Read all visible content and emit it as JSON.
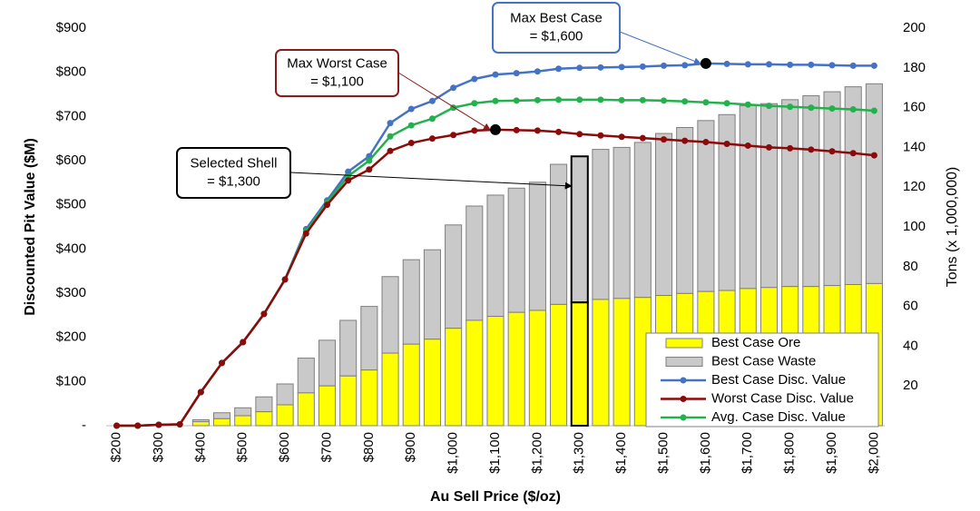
{
  "chart_data": {
    "type": "bar-line-combo",
    "x_label": "Au Sell Price ($/oz)",
    "y_label": "Discounted Pit Value ($M)",
    "y2_label": "Tons (x 1,000,000)",
    "categories": [
      "$200",
      null,
      "$300",
      null,
      "$400",
      null,
      "$500",
      null,
      "$600",
      null,
      "$700",
      null,
      "$800",
      null,
      "$900",
      null,
      "$1,000",
      null,
      "$1,100",
      null,
      "$1,200",
      null,
      "$1,300",
      null,
      "$1,400",
      null,
      "$1,500",
      null,
      "$1,600",
      null,
      "$1,700",
      null,
      "$1,800",
      null,
      "$1,900",
      null,
      "$2,000"
    ],
    "ylim": [
      0,
      900
    ],
    "yticks": [
      {
        "value": 0,
        "label": "-"
      },
      {
        "value": 100,
        "label": "$100"
      },
      {
        "value": 200,
        "label": "$200"
      },
      {
        "value": 300,
        "label": "$300"
      },
      {
        "value": 400,
        "label": "$400"
      },
      {
        "value": 500,
        "label": "$500"
      },
      {
        "value": 600,
        "label": "$600"
      },
      {
        "value": 700,
        "label": "$700"
      },
      {
        "value": 800,
        "label": "$800"
      },
      {
        "value": 900,
        "label": "$900"
      }
    ],
    "y2lim": [
      0,
      200
    ],
    "y2ticks": [
      20,
      40,
      60,
      80,
      100,
      120,
      140,
      160,
      180,
      200
    ],
    "series": [
      {
        "name": "Best Case Ore",
        "kind": "bar",
        "axis": "y2",
        "color": "#ffff00",
        "values": [
          null,
          null,
          null,
          null,
          2,
          3.5,
          5,
          7,
          10.5,
          16.5,
          20,
          25,
          28,
          36.5,
          41,
          43.5,
          49,
          53,
          55,
          57,
          58,
          61,
          62,
          63.5,
          64,
          64.5,
          65.5,
          66.5,
          67.5,
          68,
          69,
          69.5,
          70,
          70,
          70.5,
          71,
          71.5
        ]
      },
      {
        "name": "Best Case Waste",
        "kind": "bar",
        "axis": "y2",
        "color": "#c9c9c9",
        "values": [
          null,
          null,
          null,
          null,
          1,
          3,
          4,
          7.5,
          10.5,
          17.5,
          23,
          28,
          32,
          38.5,
          42.5,
          45,
          52,
          57.5,
          61,
          62.5,
          64.5,
          70.5,
          73.5,
          75.5,
          76,
          78,
          81.5,
          83.5,
          86,
          88.5,
          92,
          92.5,
          94,
          96,
          97.5,
          99.5,
          100.5
        ]
      },
      {
        "name": "Best Case Disc. Value",
        "kind": "line",
        "color": "#4472c4",
        "values": [
          0,
          0,
          2,
          3,
          76,
          142,
          189,
          253,
          331,
          445,
          510,
          575,
          610,
          685,
          717,
          735,
          765,
          785,
          795,
          798,
          802,
          808,
          810,
          811,
          812,
          813,
          815,
          816,
          820,
          819,
          818,
          818,
          817,
          817,
          816,
          815,
          815
        ]
      },
      {
        "name": "Worst Case Disc. Value",
        "kind": "line",
        "color": "#8b0a0a",
        "values": [
          0,
          0,
          2,
          3,
          76,
          142,
          189,
          253,
          331,
          435,
          500,
          555,
          580,
          622,
          640,
          650,
          658,
          668,
          670,
          669,
          668,
          665,
          660,
          657,
          654,
          651,
          648,
          645,
          642,
          638,
          634,
          630,
          628,
          625,
          621,
          617,
          612
        ]
      },
      {
        "name": "Avg. Case Disc. Value",
        "kind": "line",
        "color": "#22b14c",
        "values": [
          0,
          0,
          2,
          3,
          76,
          142,
          189,
          253,
          331,
          440,
          505,
          565,
          600,
          655,
          680,
          695,
          720,
          730,
          735,
          736,
          737,
          738,
          738,
          738,
          737,
          737,
          736,
          734,
          732,
          730,
          727,
          724,
          722,
          720,
          718,
          716,
          713
        ]
      }
    ],
    "annotations": [
      {
        "lines": [
          "Max Best Case",
          "= $1,600"
        ],
        "color": "#4472c4"
      },
      {
        "lines": [
          "Max Worst Case",
          "= $1,100"
        ],
        "color": "#8b1a1a"
      },
      {
        "lines": [
          "Selected Shell",
          "= $1,300"
        ],
        "color": "#000000"
      }
    ],
    "legend": "lower right"
  }
}
